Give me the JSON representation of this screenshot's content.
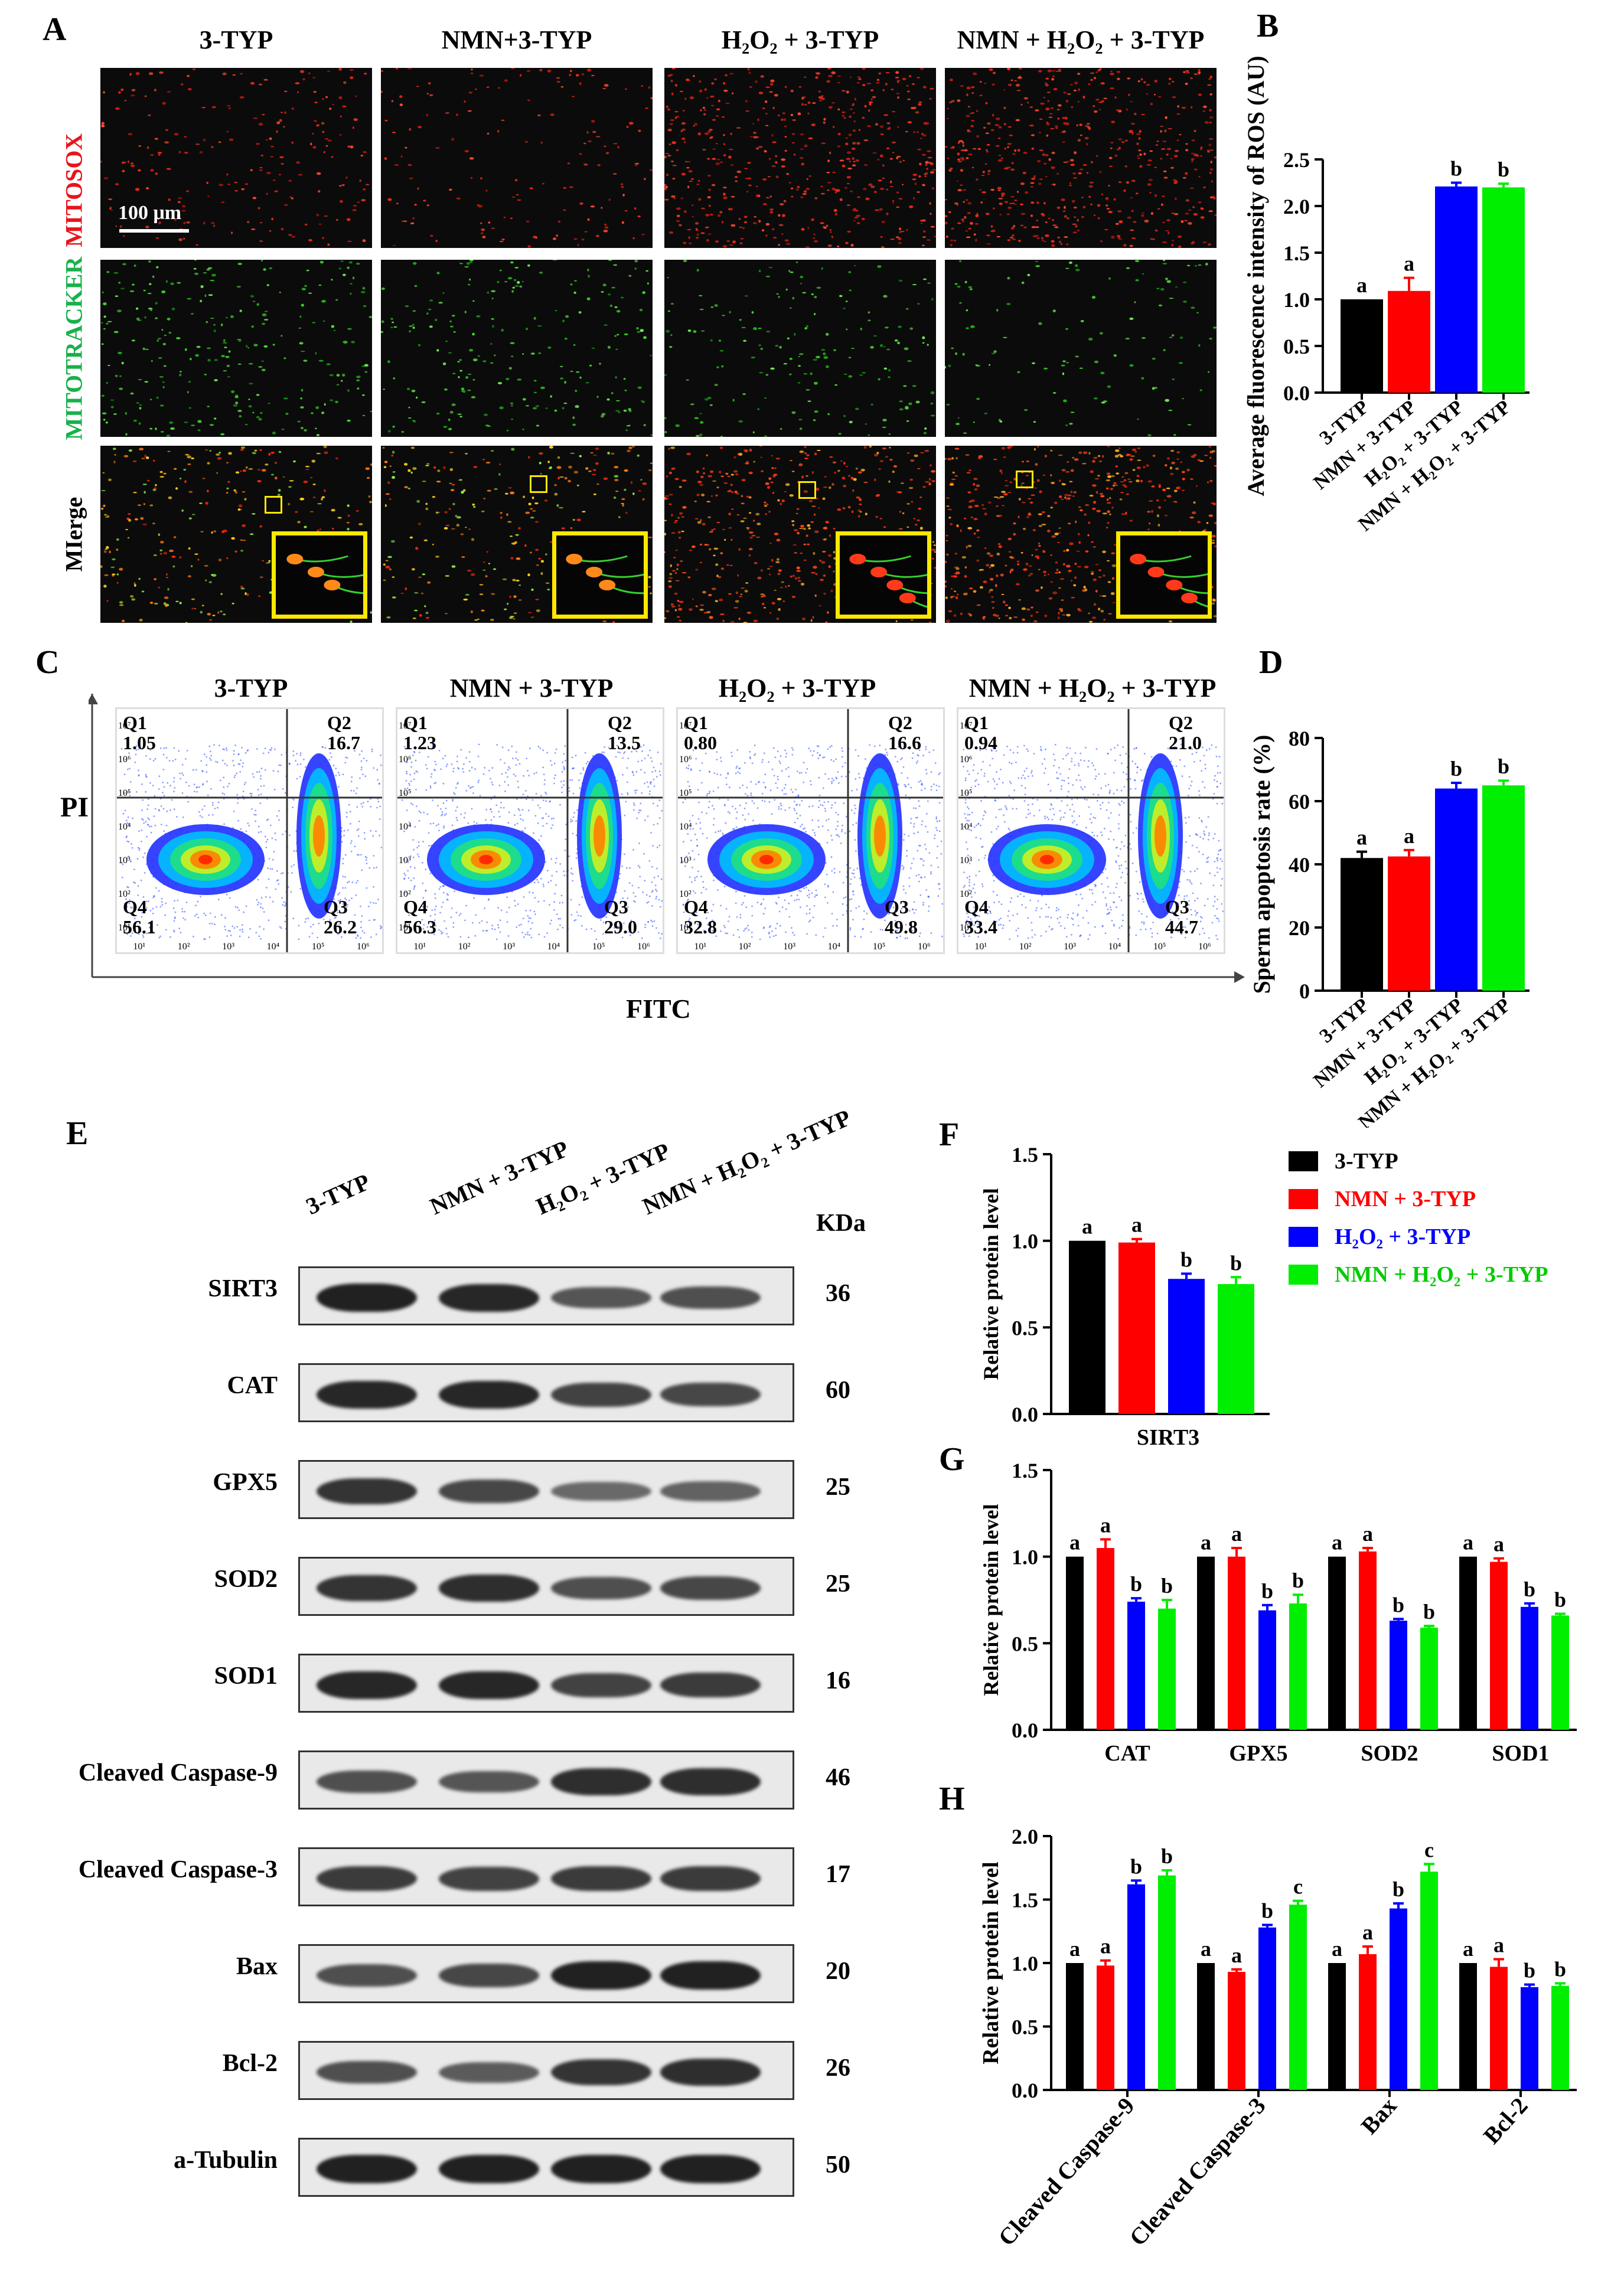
{
  "panels": {
    "A": "A",
    "B": "B",
    "C": "C",
    "D": "D",
    "E": "E",
    "F": "F",
    "G": "G",
    "H": "H"
  },
  "groups": [
    "3-TYP",
    "NMN+3-TYP",
    "H2O2 + 3-TYP",
    "NMN + H2O2 + 3-TYP"
  ],
  "colors": {
    "g1": "#000000",
    "g2": "#ff0000",
    "g3": "#0000ff",
    "g4": "#00ee00"
  },
  "microscopy": {
    "columns": [
      "3-TYP",
      "NMN+3-TYP",
      "H₂O₂ + 3-TYP",
      "NMN + H₂O₂ + 3-TYP"
    ],
    "rows": [
      "MITOSOX",
      "MITOTRACKER",
      "MIerge"
    ],
    "scale_bar": "100 μm"
  },
  "flow": {
    "titles": [
      "3-TYP",
      "NMN + 3-TYP",
      "H₂O₂ +  3-TYP",
      "NMN + H₂O₂ + 3-TYP"
    ],
    "xlabel": "FITC",
    "ylabel": "PI",
    "quadrants": [
      {
        "Q1": "1.05",
        "Q2": "16.7",
        "Q3": "26.2",
        "Q4": "56.1"
      },
      {
        "Q1": "1.23",
        "Q2": "13.5",
        "Q3": "29.0",
        "Q4": "56.3"
      },
      {
        "Q1": "0.80",
        "Q2": "16.6",
        "Q3": "49.8",
        "Q4": "32.8"
      },
      {
        "Q1": "0.94",
        "Q2": "21.0",
        "Q3": "44.7",
        "Q4": "33.4"
      }
    ],
    "ticks_x": [
      "10¹",
      "10²",
      "10³",
      "10⁴",
      "10⁵",
      "10⁶"
    ],
    "ticks_y": [
      "10⁷",
      "10⁶",
      "10⁵",
      "10⁴",
      "10³",
      "10²",
      "10¹"
    ]
  },
  "western": {
    "lanes": [
      "3-TYP",
      "NMN + 3-TYP",
      "H₂O₂ + 3-TYP",
      "NMN + H₂O₂ + 3-TYP"
    ],
    "kda_header": "KDa",
    "rows": [
      {
        "name": "SIRT3",
        "kda": "36"
      },
      {
        "name": "CAT",
        "kda": "60"
      },
      {
        "name": "GPX5",
        "kda": "25"
      },
      {
        "name": "SOD2",
        "kda": "25"
      },
      {
        "name": "SOD1",
        "kda": "16"
      },
      {
        "name": "Cleaved Caspase-9",
        "kda": "46"
      },
      {
        "name": "Cleaved Caspase-3",
        "kda": "17"
      },
      {
        "name": "Bax",
        "kda": "20"
      },
      {
        "name": "Bcl-2",
        "kda": "26"
      },
      {
        "name": "a-Tubulin",
        "kda": "50"
      }
    ]
  },
  "legend": [
    "3-TYP",
    "NMN + 3-TYP",
    "H₂O₂ + 3-TYP",
    "NMN + H₂O₂ + 3-TYP"
  ],
  "chart_data": [
    {
      "id": "B",
      "type": "bar",
      "ylabel": "Average fluorescence intensity of ROS (AU)",
      "ylim": [
        0,
        2.5
      ],
      "yticks": [
        "0.0",
        "0.5",
        "1.0",
        "1.5",
        "2.0",
        "2.5"
      ],
      "categories": [
        "3-TYP",
        "NMN + 3-TYP",
        "H₂O₂ + 3-TYP",
        "NMN + H₂O₂ + 3-TYP"
      ],
      "values": [
        1.0,
        1.09,
        2.21,
        2.2
      ],
      "errors": [
        0.0,
        0.14,
        0.04,
        0.04
      ],
      "letters": [
        "a",
        "a",
        "b",
        "b"
      ]
    },
    {
      "id": "D",
      "type": "bar",
      "ylabel": "Sperm apoptosis rate (%)",
      "ylim": [
        0,
        80
      ],
      "yticks": [
        "0",
        "20",
        "40",
        "60",
        "80"
      ],
      "categories": [
        "3-TYP",
        "NMN + 3-TYP",
        "H₂O₂ + 3-TYP",
        "NMN + H₂O₂ + 3-TYP"
      ],
      "values": [
        42.0,
        42.5,
        64.0,
        65.0
      ],
      "errors": [
        2.0,
        2.0,
        1.8,
        1.5
      ],
      "letters": [
        "a",
        "a",
        "b",
        "b"
      ]
    },
    {
      "id": "F",
      "type": "bar",
      "ylabel": "Relative protein level",
      "ylim": [
        0,
        1.5
      ],
      "yticks": [
        "0.0",
        "0.5",
        "1.0",
        "1.5"
      ],
      "categories": [
        "SIRT3"
      ],
      "series": [
        {
          "name": "3-TYP",
          "values": [
            1.0
          ],
          "errors": [
            0.0
          ],
          "letters": [
            "a"
          ]
        },
        {
          "name": "NMN + 3-TYP",
          "values": [
            0.99
          ],
          "errors": [
            0.02
          ],
          "letters": [
            "a"
          ]
        },
        {
          "name": "H₂O₂ + 3-TYP",
          "values": [
            0.78
          ],
          "errors": [
            0.03
          ],
          "letters": [
            "b"
          ]
        },
        {
          "name": "NMN + H₂O₂ + 3-TYP",
          "values": [
            0.75
          ],
          "errors": [
            0.04
          ],
          "letters": [
            "b"
          ]
        }
      ]
    },
    {
      "id": "G",
      "type": "bar",
      "ylabel": "Relative protein level",
      "ylim": [
        0,
        1.5
      ],
      "yticks": [
        "0.0",
        "0.5",
        "1.0",
        "1.5"
      ],
      "categories": [
        "CAT",
        "GPX5",
        "SOD2",
        "SOD1"
      ],
      "series": [
        {
          "name": "3-TYP",
          "values": [
            1.0,
            1.0,
            1.0,
            1.0
          ],
          "errors": [
            0,
            0,
            0,
            0
          ],
          "letters": [
            "a",
            "a",
            "a",
            "a"
          ]
        },
        {
          "name": "NMN + 3-TYP",
          "values": [
            1.05,
            1.0,
            1.03,
            0.97
          ],
          "errors": [
            0.05,
            0.05,
            0.02,
            0.02
          ],
          "letters": [
            "a",
            "a",
            "a",
            "a"
          ]
        },
        {
          "name": "H₂O₂ + 3-TYP",
          "values": [
            0.74,
            0.69,
            0.63,
            0.71
          ],
          "errors": [
            0.02,
            0.03,
            0.01,
            0.02
          ],
          "letters": [
            "b",
            "b",
            "b",
            "b"
          ]
        },
        {
          "name": "NMN + H₂O₂ + 3-TYP",
          "values": [
            0.7,
            0.73,
            0.59,
            0.66
          ],
          "errors": [
            0.05,
            0.05,
            0.01,
            0.01
          ],
          "letters": [
            "b",
            "b",
            "b",
            "b"
          ]
        }
      ]
    },
    {
      "id": "H",
      "type": "bar",
      "ylabel": "Relative protein level",
      "ylim": [
        0,
        2.0
      ],
      "yticks": [
        "0.0",
        "0.5",
        "1.0",
        "1.5",
        "2.0"
      ],
      "categories": [
        "Cleaved Caspase-9",
        "Cleaved Caspase-3",
        "Bax",
        "Bcl-2"
      ],
      "series": [
        {
          "name": "3-TYP",
          "values": [
            1.0,
            1.0,
            1.0,
            1.0
          ],
          "errors": [
            0,
            0,
            0,
            0
          ],
          "letters": [
            "a",
            "a",
            "a",
            "a"
          ]
        },
        {
          "name": "NMN + 3-TYP",
          "values": [
            0.98,
            0.93,
            1.07,
            0.97
          ],
          "errors": [
            0.04,
            0.02,
            0.06,
            0.06
          ],
          "letters": [
            "a",
            "a",
            "a",
            "a"
          ]
        },
        {
          "name": "H₂O₂ + 3-TYP",
          "values": [
            1.62,
            1.28,
            1.43,
            0.81
          ],
          "errors": [
            0.03,
            0.02,
            0.04,
            0.02
          ],
          "letters": [
            "b",
            "b",
            "b",
            "b"
          ]
        },
        {
          "name": "NMN + H₂O₂ + 3-TYP",
          "values": [
            1.69,
            1.46,
            1.72,
            0.82
          ],
          "errors": [
            0.04,
            0.03,
            0.06,
            0.02
          ],
          "letters": [
            "b",
            "c",
            "c",
            "b"
          ]
        }
      ]
    }
  ]
}
